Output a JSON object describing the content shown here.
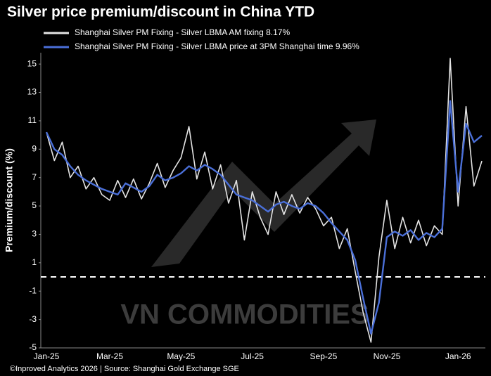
{
  "chart_data": {
    "type": "line",
    "title": "Silver price premium/discount in China YTD",
    "y_label": "Premium/discount (%)",
    "watermark": "VN COMMODITIES",
    "source": "©Inproved Analytics 2026 | Source: Shanghai Gold Exchange SGE",
    "categories": [
      "Jan-25",
      null,
      null,
      null,
      null,
      null,
      null,
      null,
      "Mar-25",
      null,
      null,
      null,
      null,
      null,
      null,
      null,
      null,
      "May-25",
      null,
      null,
      null,
      null,
      null,
      null,
      null,
      null,
      "Jul-25",
      null,
      null,
      null,
      null,
      null,
      null,
      null,
      null,
      "Sep-25",
      null,
      null,
      null,
      null,
      null,
      null,
      null,
      "Nov-25",
      null,
      null,
      null,
      null,
      null,
      null,
      null,
      null,
      "Jan-26",
      null,
      null,
      null
    ],
    "series": [
      {
        "name": "Shanghai Silver PM Fixing - Silver LBMA AM fixing 8.17%",
        "color": "#e4e4e4",
        "values": [
          10.2,
          8.2,
          9.5,
          7.0,
          7.8,
          6.2,
          7.0,
          5.8,
          5.4,
          6.8,
          5.6,
          6.9,
          5.5,
          6.6,
          8.0,
          6.3,
          7.5,
          8.4,
          10.6,
          6.9,
          8.8,
          6.2,
          7.9,
          5.2,
          6.8,
          2.6,
          6.0,
          4.2,
          3.0,
          6.0,
          4.4,
          5.8,
          4.5,
          5.6,
          4.8,
          3.6,
          4.2,
          2.0,
          3.4,
          0.4,
          -2.5,
          -4.6,
          1.4,
          5.4,
          2.0,
          4.2,
          2.4,
          4.0,
          2.2,
          3.6,
          3.0,
          15.4,
          5.0,
          12.0,
          6.4,
          8.17
        ]
      },
      {
        "name": "Shanghai Silver PM Fixing - Silver LBMA price at 3PM Shanghai time 9.96%",
        "color": "#4a6fd8",
        "values": [
          10.2,
          9.0,
          8.6,
          7.8,
          7.2,
          6.8,
          6.5,
          6.2,
          6.0,
          5.8,
          6.6,
          6.3,
          6.0,
          6.4,
          7.2,
          6.8,
          7.0,
          7.3,
          7.8,
          7.5,
          7.9,
          7.6,
          7.2,
          6.5,
          5.8,
          5.6,
          5.4,
          5.0,
          4.6,
          5.1,
          5.3,
          5.0,
          4.8,
          5.2,
          5.0,
          4.5,
          3.8,
          3.2,
          2.6,
          1.2,
          -1.5,
          -4.0,
          -1.8,
          2.8,
          3.2,
          2.9,
          3.3,
          2.6,
          3.1,
          2.8,
          3.4,
          12.4,
          6.0,
          10.8,
          9.5,
          9.96
        ]
      }
    ],
    "ylim": [
      -5,
      15.8
    ],
    "yticks": [
      -5,
      -3,
      -1,
      1,
      3,
      5,
      7,
      9,
      11,
      13,
      15
    ],
    "reference_line": 0,
    "grid": false
  }
}
